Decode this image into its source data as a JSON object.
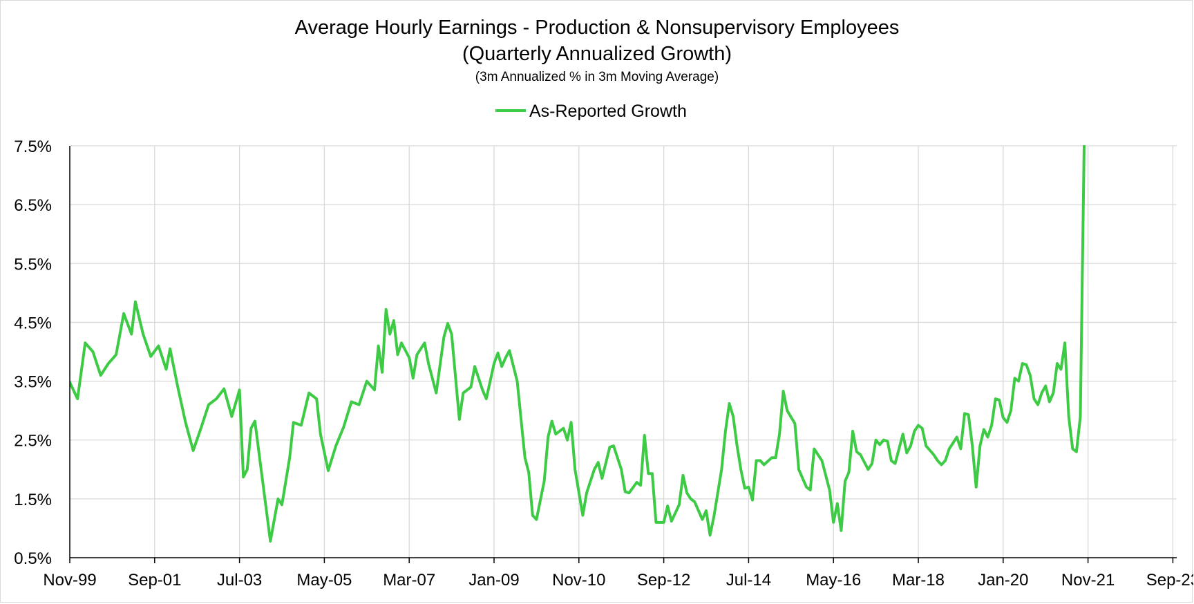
{
  "chart_data": {
    "type": "line",
    "title": "Average Hourly Earnings - Production & Nonsupervisory Employees",
    "subtitle": "(Quarterly Annualized Growth)",
    "note": "(3m Annualized % in 3m Moving Average)",
    "xlabel": "",
    "ylabel": "",
    "legend_position": "top-center",
    "grid": true,
    "x_range": [
      "1999-11",
      "2023-10"
    ],
    "ylim": [
      0.5,
      7.5
    ],
    "y_ticks": [
      0.5,
      1.5,
      2.5,
      3.5,
      4.5,
      5.5,
      6.5,
      7.5
    ],
    "y_tick_labels": [
      "0.5%",
      "1.5%",
      "2.5%",
      "3.5%",
      "4.5%",
      "5.5%",
      "6.5%",
      "7.5%"
    ],
    "x_ticks": [
      "1999-11",
      "2001-09",
      "2003-07",
      "2005-05",
      "2007-03",
      "2009-01",
      "2010-11",
      "2012-09",
      "2014-07",
      "2016-05",
      "2018-03",
      "2020-01",
      "2021-11",
      "2023-09"
    ],
    "x_tick_labels": [
      "Nov-99",
      "Sep-01",
      "Jul-03",
      "May-05",
      "Mar-07",
      "Jan-09",
      "Nov-10",
      "Sep-12",
      "Jul-14",
      "May-16",
      "Mar-18",
      "Jan-20",
      "Nov-21",
      "Sep-23"
    ],
    "colors": {
      "series": "#3dca45",
      "grid": "#d9d9d9",
      "axis": "#000000"
    },
    "series": [
      {
        "name": "As-Reported Growth",
        "points": [
          [
            "1999-11",
            3.48
          ],
          [
            "2000-01",
            3.2
          ],
          [
            "2000-03",
            4.15
          ],
          [
            "2000-05",
            4.0
          ],
          [
            "2000-07",
            3.6
          ],
          [
            "2000-09",
            3.8
          ],
          [
            "2000-11",
            3.95
          ],
          [
            "2001-01",
            4.65
          ],
          [
            "2001-03",
            4.3
          ],
          [
            "2001-04",
            4.85
          ],
          [
            "2001-06",
            4.3
          ],
          [
            "2001-08",
            3.92
          ],
          [
            "2001-10",
            4.1
          ],
          [
            "2001-12",
            3.7
          ],
          [
            "2002-01",
            4.05
          ],
          [
            "2002-03",
            3.4
          ],
          [
            "2002-05",
            2.8
          ],
          [
            "2002-07",
            2.32
          ],
          [
            "2002-09",
            2.7
          ],
          [
            "2002-11",
            3.1
          ],
          [
            "2003-01",
            3.2
          ],
          [
            "2003-03",
            3.37
          ],
          [
            "2003-05",
            2.9
          ],
          [
            "2003-07",
            3.35
          ],
          [
            "2003-08",
            1.87
          ],
          [
            "2003-09",
            2.0
          ],
          [
            "2003-10",
            2.7
          ],
          [
            "2003-11",
            2.82
          ],
          [
            "2004-01",
            1.8
          ],
          [
            "2004-03",
            0.78
          ],
          [
            "2004-05",
            1.5
          ],
          [
            "2004-06",
            1.4
          ],
          [
            "2004-08",
            2.2
          ],
          [
            "2004-09",
            2.8
          ],
          [
            "2004-11",
            2.75
          ],
          [
            "2005-01",
            3.3
          ],
          [
            "2005-03",
            3.2
          ],
          [
            "2005-04",
            2.6
          ],
          [
            "2005-06",
            1.98
          ],
          [
            "2005-08",
            2.4
          ],
          [
            "2005-10",
            2.72
          ],
          [
            "2005-12",
            3.15
          ],
          [
            "2006-02",
            3.1
          ],
          [
            "2006-04",
            3.5
          ],
          [
            "2006-06",
            3.35
          ],
          [
            "2006-07",
            4.1
          ],
          [
            "2006-08",
            3.65
          ],
          [
            "2006-09",
            4.72
          ],
          [
            "2006-10",
            4.3
          ],
          [
            "2006-11",
            4.53
          ],
          [
            "2006-12",
            3.95
          ],
          [
            "2007-01",
            4.15
          ],
          [
            "2007-03",
            3.9
          ],
          [
            "2007-04",
            3.55
          ],
          [
            "2007-05",
            3.95
          ],
          [
            "2007-07",
            4.15
          ],
          [
            "2007-08",
            3.8
          ],
          [
            "2007-10",
            3.3
          ],
          [
            "2007-12",
            4.25
          ],
          [
            "2008-01",
            4.48
          ],
          [
            "2008-02",
            4.3
          ],
          [
            "2008-04",
            2.85
          ],
          [
            "2008-05",
            3.3
          ],
          [
            "2008-07",
            3.4
          ],
          [
            "2008-08",
            3.75
          ],
          [
            "2008-10",
            3.35
          ],
          [
            "2008-11",
            3.2
          ],
          [
            "2009-01",
            3.8
          ],
          [
            "2009-02",
            3.98
          ],
          [
            "2009-03",
            3.75
          ],
          [
            "2009-04",
            3.9
          ],
          [
            "2009-05",
            4.02
          ],
          [
            "2009-07",
            3.5
          ],
          [
            "2009-09",
            2.2
          ],
          [
            "2009-10",
            1.95
          ],
          [
            "2009-11",
            1.22
          ],
          [
            "2009-12",
            1.15
          ],
          [
            "2010-02",
            1.8
          ],
          [
            "2010-03",
            2.55
          ],
          [
            "2010-04",
            2.82
          ],
          [
            "2010-05",
            2.6
          ],
          [
            "2010-07",
            2.7
          ],
          [
            "2010-08",
            2.5
          ],
          [
            "2010-09",
            2.8
          ],
          [
            "2010-10",
            2.0
          ],
          [
            "2010-12",
            1.22
          ],
          [
            "2011-01",
            1.6
          ],
          [
            "2011-03",
            2.0
          ],
          [
            "2011-04",
            2.12
          ],
          [
            "2011-05",
            1.85
          ],
          [
            "2011-07",
            2.38
          ],
          [
            "2011-08",
            2.4
          ],
          [
            "2011-10",
            2.0
          ],
          [
            "2011-11",
            1.62
          ],
          [
            "2011-12",
            1.6
          ],
          [
            "2012-02",
            1.78
          ],
          [
            "2012-03",
            1.73
          ],
          [
            "2012-04",
            2.58
          ],
          [
            "2012-05",
            1.93
          ],
          [
            "2012-06",
            1.93
          ],
          [
            "2012-07",
            1.1
          ],
          [
            "2012-09",
            1.1
          ],
          [
            "2012-10",
            1.38
          ],
          [
            "2012-11",
            1.12
          ],
          [
            "2013-01",
            1.4
          ],
          [
            "2013-02",
            1.9
          ],
          [
            "2013-03",
            1.6
          ],
          [
            "2013-04",
            1.5
          ],
          [
            "2013-05",
            1.45
          ],
          [
            "2013-07",
            1.15
          ],
          [
            "2013-08",
            1.3
          ],
          [
            "2013-09",
            0.88
          ],
          [
            "2013-10",
            1.2
          ],
          [
            "2013-12",
            2.0
          ],
          [
            "2014-01",
            2.65
          ],
          [
            "2014-02",
            3.12
          ],
          [
            "2014-03",
            2.9
          ],
          [
            "2014-04",
            2.4
          ],
          [
            "2014-05",
            2.0
          ],
          [
            "2014-06",
            1.68
          ],
          [
            "2014-07",
            1.7
          ],
          [
            "2014-08",
            1.48
          ],
          [
            "2014-09",
            2.15
          ],
          [
            "2014-10",
            2.15
          ],
          [
            "2014-11",
            2.08
          ],
          [
            "2015-01",
            2.2
          ],
          [
            "2015-02",
            2.2
          ],
          [
            "2015-03",
            2.6
          ],
          [
            "2015-04",
            3.33
          ],
          [
            "2015-05",
            3.0
          ],
          [
            "2015-07",
            2.78
          ],
          [
            "2015-08",
            2.0
          ],
          [
            "2015-10",
            1.7
          ],
          [
            "2015-11",
            1.65
          ],
          [
            "2015-12",
            2.35
          ],
          [
            "2016-02",
            2.15
          ],
          [
            "2016-04",
            1.65
          ],
          [
            "2016-05",
            1.1
          ],
          [
            "2016-06",
            1.42
          ],
          [
            "2016-07",
            0.96
          ],
          [
            "2016-08",
            1.8
          ],
          [
            "2016-09",
            1.95
          ],
          [
            "2016-10",
            2.65
          ],
          [
            "2016-11",
            2.3
          ],
          [
            "2016-12",
            2.25
          ],
          [
            "2017-02",
            2.0
          ],
          [
            "2017-03",
            2.1
          ],
          [
            "2017-04",
            2.5
          ],
          [
            "2017-05",
            2.42
          ],
          [
            "2017-06",
            2.5
          ],
          [
            "2017-07",
            2.48
          ],
          [
            "2017-08",
            2.15
          ],
          [
            "2017-09",
            2.1
          ],
          [
            "2017-10",
            2.35
          ],
          [
            "2017-11",
            2.6
          ],
          [
            "2017-12",
            2.28
          ],
          [
            "2018-01",
            2.4
          ],
          [
            "2018-02",
            2.65
          ],
          [
            "2018-03",
            2.75
          ],
          [
            "2018-04",
            2.7
          ],
          [
            "2018-05",
            2.4
          ],
          [
            "2018-07",
            2.25
          ],
          [
            "2018-08",
            2.15
          ],
          [
            "2018-09",
            2.08
          ],
          [
            "2018-10",
            2.15
          ],
          [
            "2018-11",
            2.35
          ],
          [
            "2019-01",
            2.55
          ],
          [
            "2019-02",
            2.35
          ],
          [
            "2019-03",
            2.95
          ],
          [
            "2019-04",
            2.93
          ],
          [
            "2019-05",
            2.4
          ],
          [
            "2019-06",
            1.7
          ],
          [
            "2019-07",
            2.4
          ],
          [
            "2019-08",
            2.68
          ],
          [
            "2019-09",
            2.55
          ],
          [
            "2019-10",
            2.75
          ],
          [
            "2019-11",
            3.2
          ],
          [
            "2019-12",
            3.18
          ],
          [
            "2020-01",
            2.88
          ],
          [
            "2020-02",
            2.8
          ],
          [
            "2020-03",
            3.0
          ],
          [
            "2020-04",
            3.55
          ],
          [
            "2020-05",
            3.5
          ],
          [
            "2020-06",
            3.8
          ],
          [
            "2020-07",
            3.78
          ],
          [
            "2020-08",
            3.6
          ],
          [
            "2020-09",
            3.2
          ],
          [
            "2020-10",
            3.1
          ],
          [
            "2020-11",
            3.3
          ],
          [
            "2020-12",
            3.42
          ],
          [
            "2021-01",
            3.15
          ],
          [
            "2021-02",
            3.3
          ],
          [
            "2021-03",
            3.8
          ],
          [
            "2021-04",
            3.7
          ],
          [
            "2021-05",
            4.15
          ],
          [
            "2021-06",
            2.9
          ],
          [
            "2021-07",
            2.35
          ],
          [
            "2021-08",
            2.3
          ],
          [
            "2021-09",
            2.9
          ],
          [
            "2021-10",
            7.5
          ]
        ]
      }
    ]
  }
}
